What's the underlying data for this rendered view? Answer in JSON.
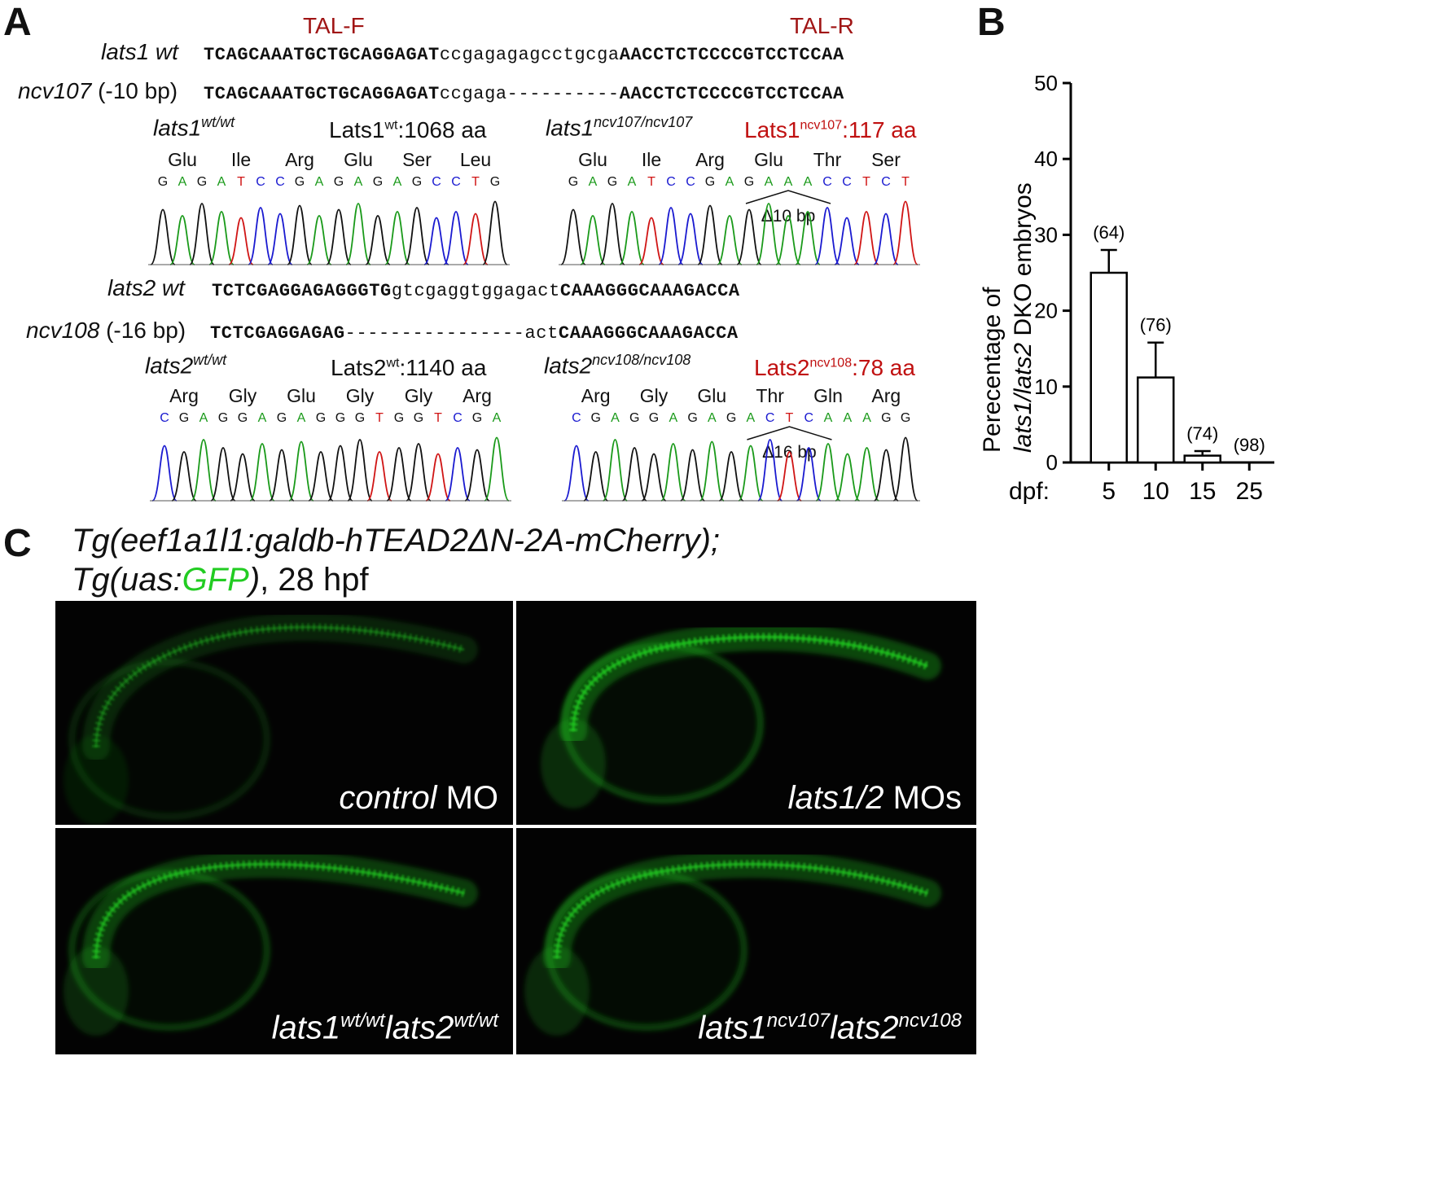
{
  "panelA": {
    "letter": "A",
    "tal_f": "TAL-F",
    "tal_r": "TAL-R",
    "lats1": {
      "wt_label": "lats1 wt",
      "wt_seq_left": "TCAGCAAATGCTGCAGGAGAT",
      "wt_seq_mid": "ccgagagagcctgcga",
      "wt_seq_right": "AACCTCTCCCCGTCCTCCAA",
      "mut_label_italic": "ncv107",
      "mut_label_rest": " (-10 bp)",
      "mut_seq_left": "TCAGCAAATGCTGCAGGAGAT",
      "mut_seq_mid": "ccgaga----------",
      "mut_seq_right": "AACCTCTCCCCGTCCTCCAA",
      "wt_geno_base": "lats1",
      "wt_geno_sup": "wt/wt",
      "wt_protein_base": "Lats1",
      "wt_protein_sup": "wt",
      "wt_protein_len": ":1068 aa",
      "mut_geno_base": "lats1",
      "mut_geno_sup": "ncv107/ncv107",
      "mut_protein_base": "Lats1",
      "mut_protein_sup": "ncv107",
      "mut_protein_len": ":117 aa",
      "wt_aa": [
        "Glu",
        "Ile",
        "Arg",
        "Glu",
        "Ser",
        "Leu"
      ],
      "wt_bases": "GAGATCCGAGAGAGCCTG",
      "mut_aa": [
        "Glu",
        "Ile",
        "Arg",
        "Glu",
        "Thr",
        "Ser"
      ],
      "mut_bases": "GAGATCCGAGAAACCTCT",
      "deletion": "Δ10 bp"
    },
    "lats2": {
      "wt_label": "lats2 wt",
      "wt_seq_left": "TCTCGAGGAGAGGGTG",
      "wt_seq_mid": "gtcgaggtggagact",
      "wt_seq_right": "CAAAGGGCAAAGACCA",
      "mut_label_italic": "ncv108",
      "mut_label_rest": " (-16 bp)",
      "mut_seq_left": "TCTCGAGGAGAG",
      "mut_seq_mid": "----------------act",
      "mut_seq_right": "CAAAGGGCAAAGACCA",
      "wt_geno_base": "lats2",
      "wt_geno_sup": "wt/wt",
      "wt_protein_base": "Lats2",
      "wt_protein_sup": "wt",
      "wt_protein_len": ":1140 aa",
      "mut_geno_base": "lats2",
      "mut_geno_sup": "ncv108/ncv108",
      "mut_protein_base": "Lats2",
      "mut_protein_sup": "ncv108",
      "mut_protein_len": ":78 aa",
      "wt_aa": [
        "Arg",
        "Gly",
        "Glu",
        "Gly",
        "Gly",
        "Arg"
      ],
      "wt_bases": "CGAGGAGAGGGTGGTCGA",
      "mut_aa": [
        "Arg",
        "Gly",
        "Glu",
        "Thr",
        "Gln",
        "Arg"
      ],
      "mut_bases": "CGAGGAGAGACTCAAAGG",
      "deletion": "Δ16 bp"
    }
  },
  "panelB": {
    "letter": "B",
    "xprefix": "dpf:"
  },
  "chart_data": {
    "type": "bar",
    "categories": [
      "5",
      "10",
      "15",
      "25"
    ],
    "values": [
      25,
      11.2,
      0.9,
      0
    ],
    "errors": [
      3,
      4.6,
      0.6,
      0
    ],
    "n_labels": [
      "(64)",
      "(76)",
      "(74)",
      "(98)"
    ],
    "ylabel_line1": "Perecentage of",
    "ylabel_line2_italic1": "lats1/lats2",
    "ylabel_line2_rest": " DKO embryos",
    "yticks": [
      0,
      10,
      20,
      30,
      40,
      50
    ],
    "ylim": [
      0,
      50
    ],
    "bar_fill": "#ffffff",
    "bar_stroke": "#000000"
  },
  "panelC": {
    "letter": "C",
    "title_line1": "Tg(eef1a1l1:galdb-hTEAD2ΔN-2A-mCherry);",
    "title_line2_a": "Tg(uas:",
    "title_line2_gfp": "GFP",
    "title_line2_b": ")",
    "title_line2_c": ", 28 hpf",
    "gfp_color": "#22cc22",
    "images": [
      {
        "label_italic": "control",
        "label_rest": " MO"
      },
      {
        "label_italic": "lats1/2",
        "label_rest": " MOs"
      },
      {
        "g1": "lats1",
        "s1": "wt/wt",
        "g2": "lats2",
        "s2": "wt/wt"
      },
      {
        "g1": "lats1",
        "s1": "ncv107",
        "g2": "lats2",
        "s2": "ncv108"
      }
    ]
  }
}
